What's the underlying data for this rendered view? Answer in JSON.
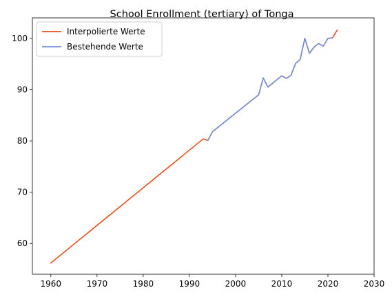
{
  "chart_data": {
    "type": "line",
    "title": "School Enrollment (tertiary) of Tonga",
    "xlabel": "",
    "ylabel": "",
    "xlim": [
      1956,
      2030
    ],
    "ylim": [
      54,
      104
    ],
    "xticks": [
      1960,
      1970,
      1980,
      1990,
      2000,
      2010,
      2020,
      2030
    ],
    "yticks": [
      60,
      70,
      80,
      90,
      100
    ],
    "legend_position": "top-left",
    "series": [
      {
        "name": "Interpolierte Werte",
        "color": "#ee4b15",
        "x": [
          1960,
          1993,
          1994,
          1995,
          2005,
          2006,
          2007,
          2010,
          2011,
          2012,
          2013,
          2014,
          2015,
          2016,
          2017,
          2018,
          2019,
          2020,
          2021,
          2022
        ],
        "y": [
          56.2,
          80.4,
          80.1,
          81.8,
          89.0,
          92.3,
          90.5,
          92.7,
          92.2,
          92.8,
          95.1,
          95.9,
          100.0,
          97.1,
          98.3,
          99.0,
          98.5,
          100.0,
          100.1,
          101.6
        ]
      },
      {
        "name": "Bestehende Werte",
        "color": "#6f90df",
        "x": [
          1994,
          1995,
          2005,
          2006,
          2007,
          2010,
          2011,
          2012,
          2013,
          2014,
          2015,
          2016,
          2017,
          2018,
          2019,
          2020,
          2021
        ],
        "y": [
          80.1,
          81.8,
          89.0,
          92.3,
          90.5,
          92.7,
          92.2,
          92.8,
          95.1,
          95.9,
          100.0,
          97.1,
          98.3,
          99.0,
          98.5,
          100.0,
          100.1
        ]
      }
    ]
  }
}
